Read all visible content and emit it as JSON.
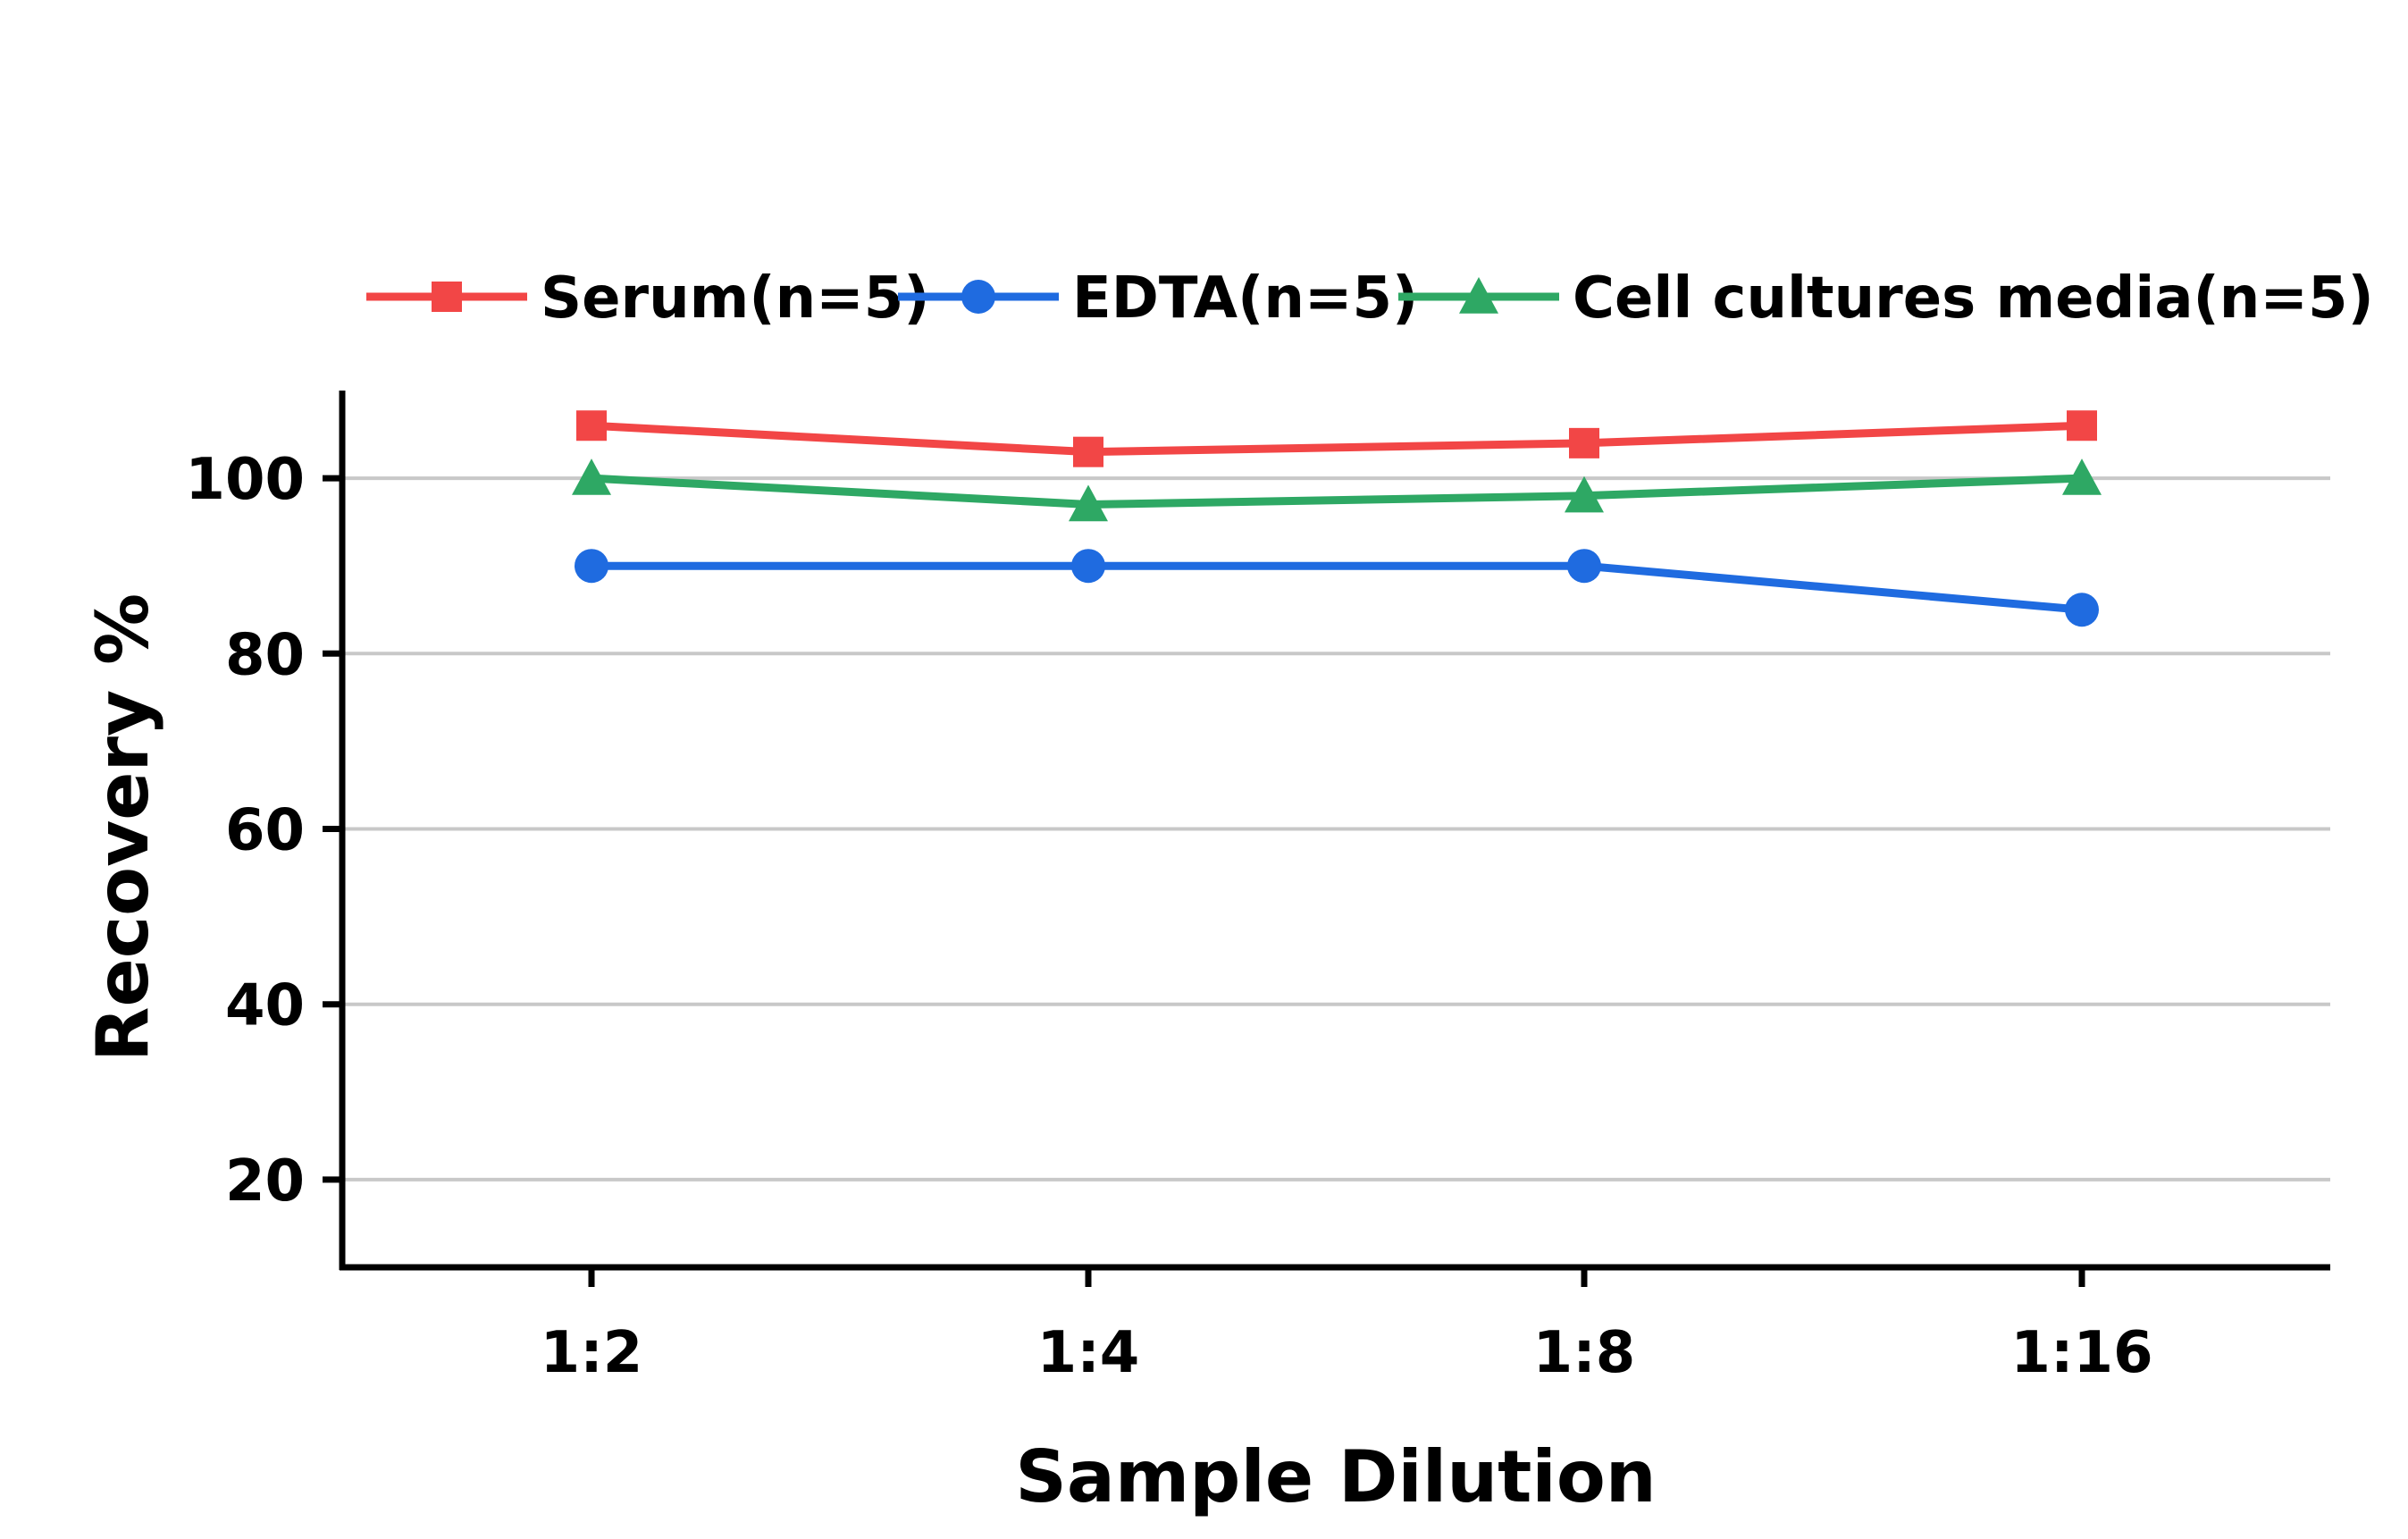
{
  "chart_data": {
    "type": "line",
    "title": "",
    "xlabel": "Sample Dilution",
    "ylabel": "Recovery %",
    "categories": [
      "1:2",
      "1:4",
      "1:8",
      "1:16"
    ],
    "ylim": [
      10,
      110
    ],
    "yticks": [
      20,
      40,
      60,
      80,
      100
    ],
    "ytick_labels": [
      "20",
      "40",
      "60",
      "80",
      "100"
    ],
    "grid": true,
    "legend_position": "top",
    "series": [
      {
        "name": "Serum(n=5)",
        "values": [
          106,
          103,
          104,
          106
        ],
        "color": "#f24646",
        "marker": "square"
      },
      {
        "name": "EDTA(n=5)",
        "values": [
          90,
          90,
          90,
          85
        ],
        "color": "#1f6be0",
        "marker": "circle"
      },
      {
        "name": "Cell cultures media(n=5)",
        "values": [
          100,
          97,
          98,
          100
        ],
        "color": "#2ea864",
        "marker": "triangle"
      }
    ]
  }
}
